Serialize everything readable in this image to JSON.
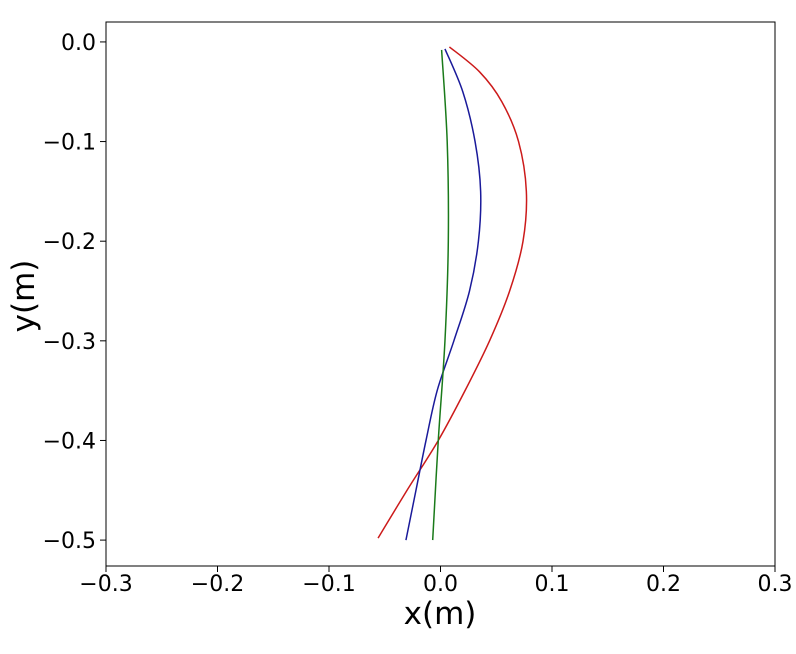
{
  "chart_data": {
    "type": "line",
    "xlabel": "x(m)",
    "ylabel": "y(m)",
    "xlim": [
      -0.3,
      0.3
    ],
    "xticks": [
      {
        "value": -0.3,
        "label": "−0.3"
      },
      {
        "value": -0.2,
        "label": "−0.2"
      },
      {
        "value": -0.1,
        "label": "−0.1"
      },
      {
        "value": 0,
        "label": "0.0"
      },
      0.1,
      0.2,
      0.3
    ],
    "ylim": [
      -0.526,
      0.02
    ],
    "yticks": [
      {
        "value": 0,
        "label": "0.0"
      },
      {
        "value": -0.1,
        "label": "−0.1"
      },
      {
        "value": -0.2,
        "label": "−0.2"
      },
      {
        "value": -0.3,
        "label": "−0.3"
      },
      {
        "value": -0.4,
        "label": "−0.4"
      },
      {
        "value": -0.5,
        "label": "−0.5"
      }
    ],
    "grid": false,
    "series": [
      {
        "color": "#cc1a1a",
        "x": [
          0.008,
          0.035,
          0.055,
          0.07,
          0.077,
          0.074,
          0.062,
          0.044,
          0.022,
          -0.002,
          -0.03,
          -0.056
        ],
        "values": [
          -0.005,
          -0.03,
          -0.06,
          -0.1,
          -0.15,
          -0.2,
          -0.25,
          -0.3,
          -0.35,
          -0.4,
          -0.45,
          -0.498
        ]
      },
      {
        "color": "#1a1a9a",
        "x": [
          0.004,
          0.02,
          0.031,
          0.036,
          0.034,
          0.026,
          0.012,
          -0.003,
          -0.013,
          -0.022,
          -0.031
        ],
        "values": [
          -0.007,
          -0.05,
          -0.1,
          -0.15,
          -0.2,
          -0.25,
          -0.3,
          -0.35,
          -0.4,
          -0.45,
          -0.5
        ]
      },
      {
        "color": "#1a7a1a",
        "x": [
          0.001,
          0.006,
          0.007,
          0.004,
          -0.002,
          -0.007
        ],
        "values": [
          -0.008,
          -0.1,
          -0.2,
          -0.3,
          -0.4,
          -0.5
        ]
      }
    ]
  }
}
